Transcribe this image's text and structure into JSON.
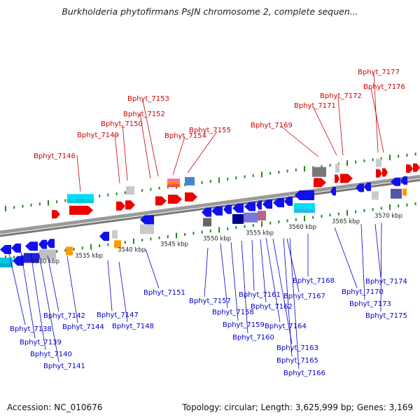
{
  "title": "Burkholderia phytofirmans PsJN chromosome 2, complete sequen...",
  "footer": {
    "accession": "Accession: NC_010676",
    "summary": "Topology: circular; Length: 3,625,999 bp; Genes: 3,169"
  },
  "colors": {
    "forward_label": "#cc0000",
    "reverse_label": "#0000cc",
    "backbone": "#999999",
    "ticks": "#228822"
  },
  "kbp_ticks": [
    "3530 kbp",
    "3535 kbp",
    "3540 kbp",
    "3545 kbp",
    "3550 kbp",
    "3555 kbp",
    "3560 kbp",
    "3565 kbp",
    "3570 kbp"
  ],
  "forward_genes": [
    "Bphyt_7146",
    "Bphyt_7149",
    "Bphyt_7150",
    "Bphyt_7152",
    "Bphyt_7153",
    "Bphyt_7154",
    "Bphyt_7155",
    "Bphyt_7169",
    "Bphyt_7171",
    "Bphyt_7172",
    "Bphyt_7176",
    "Bphyt_7177"
  ],
  "reverse_genes": [
    "Bphyt_7138",
    "Bphyt_7139",
    "Bphyt_7140",
    "Bphyt_7141",
    "Bphyt_7142",
    "Bphyt_7144",
    "Bphyt_7147",
    "Bphyt_7148",
    "Bphyt_7151",
    "Bphyt_7157",
    "Bphyt_7158",
    "Bphyt_7159",
    "Bphyt_7160",
    "Bphyt_7161",
    "Bphyt_7162",
    "Bphyt_7163",
    "Bphyt_7164",
    "Bphyt_7165",
    "Bphyt_7166",
    "Bphyt_7167",
    "Bphyt_7168",
    "Bphyt_7170",
    "Bphyt_7173",
    "Bphyt_7174",
    "Bphyt_7175"
  ]
}
